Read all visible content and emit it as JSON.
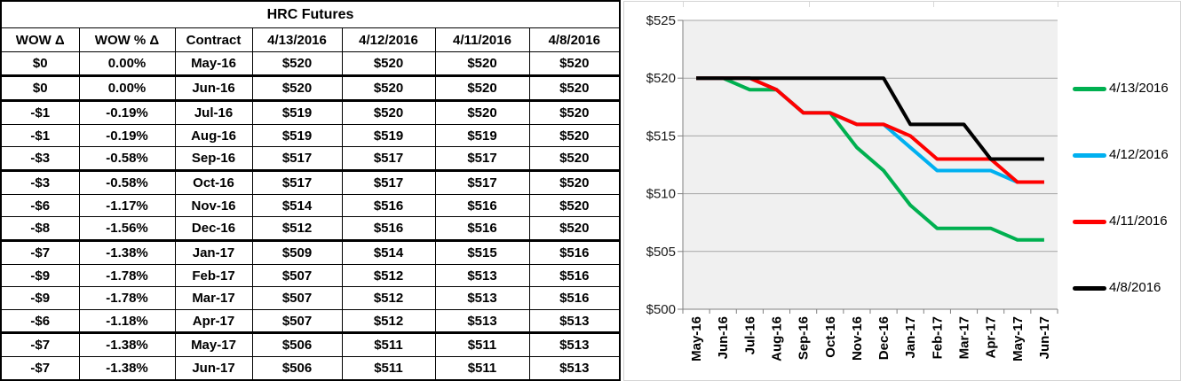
{
  "table": {
    "title": "HRC Futures",
    "columns": [
      "WOW Δ",
      "WOW % Δ",
      "Contract",
      "4/13/2016",
      "4/12/2016",
      "4/11/2016",
      "4/8/2016"
    ],
    "rows": [
      {
        "cells": [
          "$0",
          "0.00%",
          "May-16",
          "$520",
          "$520",
          "$520",
          "$520"
        ],
        "group_end": true
      },
      {
        "cells": [
          "$0",
          "0.00%",
          "Jun-16",
          "$520",
          "$520",
          "$520",
          "$520"
        ],
        "group_end": true
      },
      {
        "cells": [
          "-$1",
          "-0.19%",
          "Jul-16",
          "$519",
          "$520",
          "$520",
          "$520"
        ],
        "group_end": false
      },
      {
        "cells": [
          "-$1",
          "-0.19%",
          "Aug-16",
          "$519",
          "$519",
          "$519",
          "$520"
        ],
        "group_end": false
      },
      {
        "cells": [
          "-$3",
          "-0.58%",
          "Sep-16",
          "$517",
          "$517",
          "$517",
          "$520"
        ],
        "group_end": true
      },
      {
        "cells": [
          "-$3",
          "-0.58%",
          "Oct-16",
          "$517",
          "$517",
          "$517",
          "$520"
        ],
        "group_end": false
      },
      {
        "cells": [
          "-$6",
          "-1.17%",
          "Nov-16",
          "$514",
          "$516",
          "$516",
          "$520"
        ],
        "group_end": false
      },
      {
        "cells": [
          "-$8",
          "-1.56%",
          "Dec-16",
          "$512",
          "$516",
          "$516",
          "$520"
        ],
        "group_end": true
      },
      {
        "cells": [
          "-$7",
          "-1.38%",
          "Jan-17",
          "$509",
          "$514",
          "$515",
          "$516"
        ],
        "group_end": false
      },
      {
        "cells": [
          "-$9",
          "-1.78%",
          "Feb-17",
          "$507",
          "$512",
          "$513",
          "$516"
        ],
        "group_end": false
      },
      {
        "cells": [
          "-$9",
          "-1.78%",
          "Mar-17",
          "$507",
          "$512",
          "$513",
          "$516"
        ],
        "group_end": false
      },
      {
        "cells": [
          "-$6",
          "-1.18%",
          "Apr-17",
          "$507",
          "$512",
          "$513",
          "$513"
        ],
        "group_end": true
      },
      {
        "cells": [
          "-$7",
          "-1.38%",
          "May-17",
          "$506",
          "$511",
          "$511",
          "$513"
        ],
        "group_end": false
      },
      {
        "cells": [
          "-$7",
          "-1.38%",
          "Jun-17",
          "$506",
          "$511",
          "$511",
          "$513"
        ],
        "group_end": false
      }
    ]
  },
  "chart_data": {
    "type": "line",
    "categories": [
      "May-16",
      "Jun-16",
      "Jul-16",
      "Aug-16",
      "Sep-16",
      "Oct-16",
      "Nov-16",
      "Dec-16",
      "Jan-17",
      "Feb-17",
      "Mar-17",
      "Apr-17",
      "May-17",
      "Jun-17"
    ],
    "series": [
      {
        "name": "4/13/2016",
        "color": "#00B050",
        "values": [
          520,
          520,
          519,
          519,
          517,
          517,
          514,
          512,
          509,
          507,
          507,
          507,
          506,
          506
        ]
      },
      {
        "name": "4/12/2016",
        "color": "#00B0F0",
        "values": [
          520,
          520,
          520,
          519,
          517,
          517,
          516,
          516,
          514,
          512,
          512,
          512,
          511,
          511
        ]
      },
      {
        "name": "4/11/2016",
        "color": "#FF0000",
        "values": [
          520,
          520,
          520,
          519,
          517,
          517,
          516,
          516,
          515,
          513,
          513,
          513,
          511,
          511
        ]
      },
      {
        "name": "4/8/2016",
        "color": "#000000",
        "values": [
          520,
          520,
          520,
          520,
          520,
          520,
          520,
          520,
          516,
          516,
          516,
          513,
          513,
          513
        ]
      }
    ],
    "title": "",
    "xlabel": "",
    "ylabel": "",
    "ylim": [
      500,
      525
    ],
    "ytick_step": 5,
    "ytick_labels": [
      "$500",
      "$505",
      "$510",
      "$515",
      "$520",
      "$525"
    ],
    "grid": true,
    "legend_position": "right",
    "colors": {
      "plot_bg": "#F0F0F0",
      "gridline": "#A6A6A6",
      "axis": "#7F7F7F",
      "ytick_text": "#1A1A1A",
      "xtick_text": "#000000"
    }
  }
}
